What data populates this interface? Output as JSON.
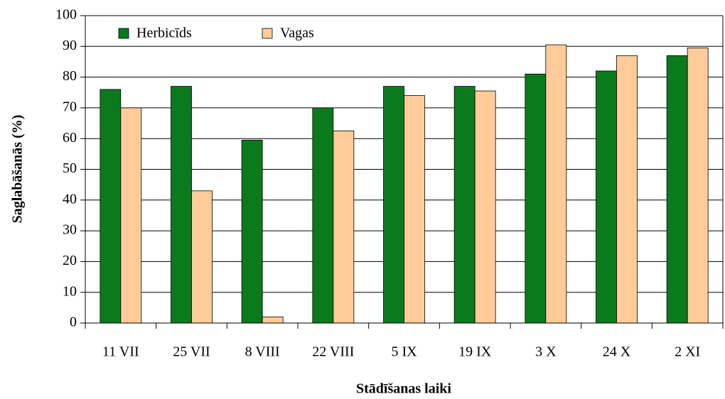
{
  "chart_data": {
    "type": "bar",
    "xlabel": "Stādīšanas laiki",
    "ylabel": "Saglabāšanās (%)",
    "categories": [
      "11 VII",
      "25 VII",
      "8 VIII",
      "22 VIII",
      "5 IX",
      "19 IX",
      "3 X",
      "24 X",
      "2 XI"
    ],
    "series": [
      {
        "name": "Herbicīds",
        "color": "#0b7a1c",
        "values": [
          76,
          77,
          59.5,
          70,
          77,
          77,
          81,
          82,
          87
        ]
      },
      {
        "name": "Vagas",
        "color": "#ffcc99",
        "values": [
          70,
          43,
          2,
          62.5,
          74,
          75.5,
          90.5,
          87,
          89.5
        ]
      }
    ],
    "ylim": [
      0,
      100
    ],
    "yticks": [
      0,
      10,
      20,
      30,
      40,
      50,
      60,
      70,
      80,
      90,
      100
    ],
    "grid": true,
    "legend": "upper left"
  }
}
